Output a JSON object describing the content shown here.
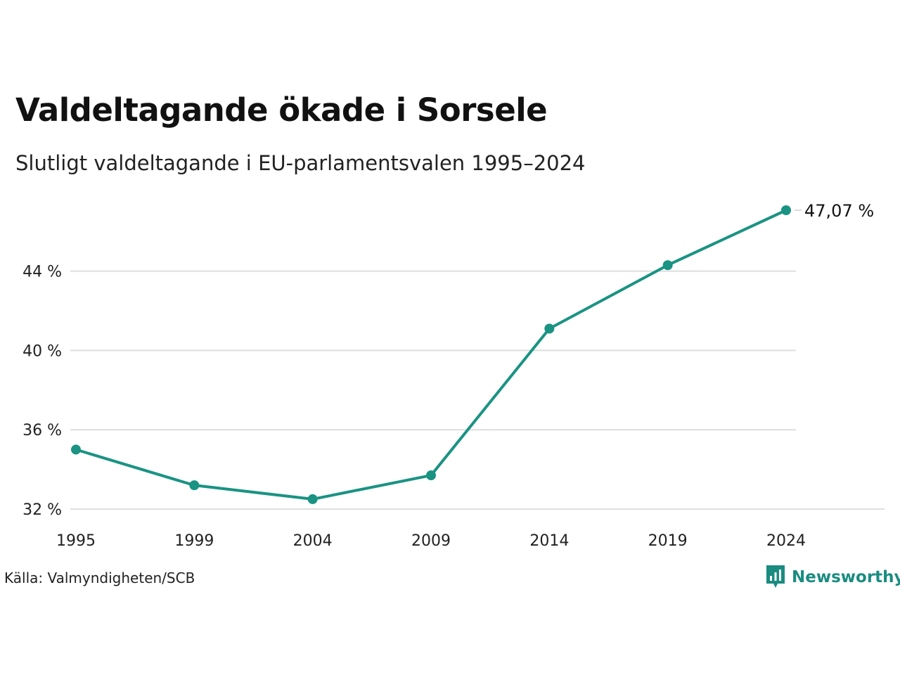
{
  "chart_data": {
    "type": "line",
    "title": "Valdeltagande ökade i Sorsele",
    "subtitle": "Slutligt valdeltagande i EU-parlamentsvalen 1995–2024",
    "x": [
      "1995",
      "1999",
      "2004",
      "2009",
      "2014",
      "2019",
      "2024"
    ],
    "series": [
      {
        "values": [
          35.0,
          33.2,
          32.5,
          33.7,
          41.1,
          44.3,
          47.07
        ],
        "color": "#1a9383"
      }
    ],
    "y_ticks": [
      32,
      36,
      40,
      44
    ],
    "y_tick_labels": [
      "32 %",
      "36 %",
      "40 %",
      "44 %"
    ],
    "ylim": [
      32,
      47.07
    ],
    "grid": true,
    "end_label": "47,07 %",
    "source": "Källa: Valmyndigheten/SCB"
  },
  "brand": {
    "name": "Newsworthy",
    "icon": "newsworthy-logo-icon",
    "color": "#1a8c80"
  }
}
